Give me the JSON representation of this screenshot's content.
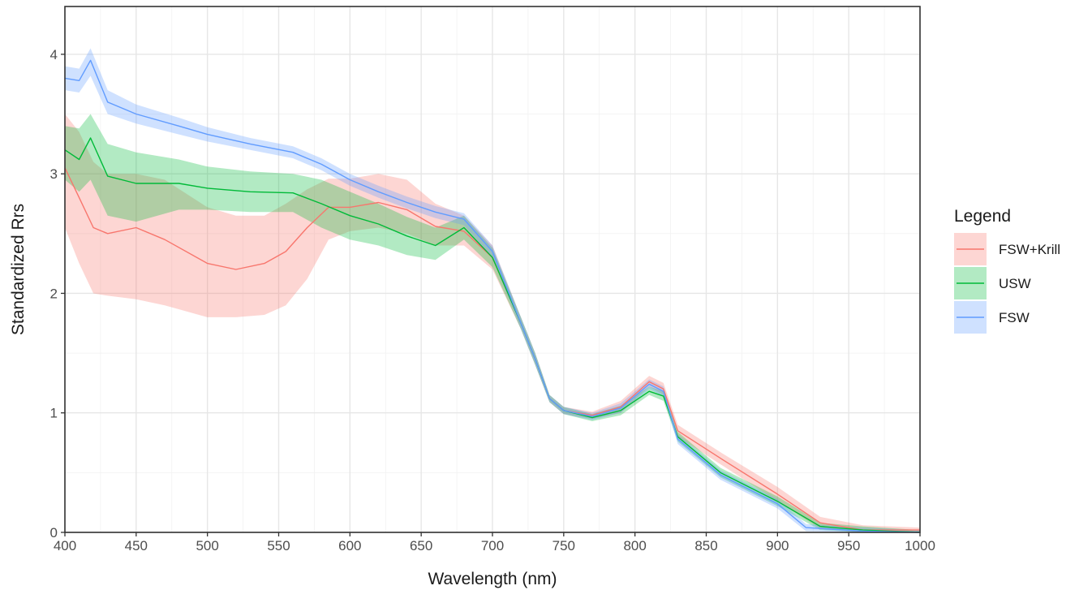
{
  "chart_data": {
    "type": "line",
    "title": "",
    "xlabel": "Wavelength (nm)",
    "ylabel": "Standardized Rrs",
    "xlim": [
      400,
      1000
    ],
    "ylim": [
      0,
      4.4
    ],
    "x_ticks": [
      "400",
      "450",
      "500",
      "550",
      "600",
      "650",
      "700",
      "750",
      "800",
      "850",
      "900",
      "950",
      "1000"
    ],
    "y_ticks": [
      "0",
      "1",
      "2",
      "3",
      "4"
    ],
    "grid": true,
    "legend": {
      "title": "Legend",
      "position": "right"
    },
    "series": [
      {
        "name": "FSW+Krill",
        "color": "#F8766D",
        "band_color": "#F8766D",
        "points": [
          [
            400,
            3.05,
            2.55,
            3.5
          ],
          [
            410,
            2.8,
            2.25,
            3.35
          ],
          [
            420,
            2.55,
            2.0,
            3.1
          ],
          [
            430,
            2.5,
            1.98,
            3.0
          ],
          [
            450,
            2.55,
            1.95,
            3.0
          ],
          [
            470,
            2.45,
            1.9,
            2.95
          ],
          [
            500,
            2.25,
            1.8,
            2.72
          ],
          [
            520,
            2.2,
            1.8,
            2.65
          ],
          [
            540,
            2.25,
            1.82,
            2.65
          ],
          [
            555,
            2.35,
            1.9,
            2.75
          ],
          [
            570,
            2.55,
            2.12,
            2.87
          ],
          [
            585,
            2.72,
            2.45,
            2.96
          ],
          [
            600,
            2.72,
            2.52,
            2.96
          ],
          [
            620,
            2.76,
            2.55,
            3.0
          ],
          [
            640,
            2.7,
            2.5,
            2.95
          ],
          [
            660,
            2.56,
            2.4,
            2.75
          ],
          [
            680,
            2.52,
            2.4,
            2.65
          ],
          [
            700,
            2.3,
            2.2,
            2.4
          ],
          [
            720,
            1.75,
            1.7,
            1.8
          ],
          [
            730,
            1.45,
            1.4,
            1.5
          ],
          [
            740,
            1.12,
            1.09,
            1.15
          ],
          [
            750,
            1.02,
            0.99,
            1.05
          ],
          [
            770,
            0.98,
            0.95,
            1.01
          ],
          [
            790,
            1.05,
            1.0,
            1.1
          ],
          [
            810,
            1.26,
            1.22,
            1.31
          ],
          [
            820,
            1.2,
            1.15,
            1.25
          ],
          [
            830,
            0.85,
            0.8,
            0.9
          ],
          [
            860,
            0.62,
            0.57,
            0.67
          ],
          [
            900,
            0.32,
            0.26,
            0.38
          ],
          [
            930,
            0.08,
            0.03,
            0.13
          ],
          [
            960,
            0.02,
            0.0,
            0.06
          ],
          [
            1000,
            0.02,
            0.0,
            0.04
          ]
        ]
      },
      {
        "name": "USW",
        "color": "#00BA38",
        "band_color": "#00BA38",
        "points": [
          [
            400,
            3.2,
            2.95,
            3.4
          ],
          [
            410,
            3.12,
            2.85,
            3.38
          ],
          [
            418,
            3.3,
            2.95,
            3.5
          ],
          [
            430,
            2.98,
            2.65,
            3.25
          ],
          [
            450,
            2.92,
            2.6,
            3.18
          ],
          [
            480,
            2.92,
            2.7,
            3.12
          ],
          [
            500,
            2.88,
            2.7,
            3.06
          ],
          [
            530,
            2.85,
            2.68,
            3.02
          ],
          [
            560,
            2.84,
            2.68,
            3.0
          ],
          [
            580,
            2.75,
            2.55,
            2.95
          ],
          [
            600,
            2.65,
            2.45,
            2.85
          ],
          [
            620,
            2.58,
            2.4,
            2.75
          ],
          [
            640,
            2.48,
            2.32,
            2.64
          ],
          [
            660,
            2.4,
            2.28,
            2.55
          ],
          [
            680,
            2.55,
            2.45,
            2.65
          ],
          [
            700,
            2.3,
            2.22,
            2.38
          ],
          [
            720,
            1.75,
            1.7,
            1.8
          ],
          [
            730,
            1.45,
            1.4,
            1.5
          ],
          [
            740,
            1.12,
            1.09,
            1.15
          ],
          [
            750,
            1.02,
            0.99,
            1.05
          ],
          [
            770,
            0.96,
            0.93,
            0.99
          ],
          [
            790,
            1.02,
            0.98,
            1.06
          ],
          [
            810,
            1.18,
            1.15,
            1.22
          ],
          [
            820,
            1.14,
            1.1,
            1.18
          ],
          [
            830,
            0.8,
            0.76,
            0.84
          ],
          [
            860,
            0.5,
            0.46,
            0.54
          ],
          [
            900,
            0.26,
            0.22,
            0.3
          ],
          [
            930,
            0.05,
            0.02,
            0.08
          ],
          [
            960,
            0.02,
            0.0,
            0.05
          ],
          [
            1000,
            0.0,
            0.0,
            0.02
          ]
        ]
      },
      {
        "name": "FSW",
        "color": "#619CFF",
        "band_color": "#619CFF",
        "points": [
          [
            400,
            3.8,
            3.7,
            3.9
          ],
          [
            410,
            3.78,
            3.68,
            3.88
          ],
          [
            418,
            3.95,
            3.82,
            4.05
          ],
          [
            430,
            3.6,
            3.5,
            3.7
          ],
          [
            450,
            3.5,
            3.42,
            3.58
          ],
          [
            480,
            3.4,
            3.33,
            3.47
          ],
          [
            500,
            3.33,
            3.27,
            3.39
          ],
          [
            530,
            3.25,
            3.2,
            3.3
          ],
          [
            560,
            3.18,
            3.13,
            3.23
          ],
          [
            580,
            3.08,
            3.03,
            3.13
          ],
          [
            600,
            2.95,
            2.9,
            3.0
          ],
          [
            620,
            2.85,
            2.8,
            2.9
          ],
          [
            640,
            2.76,
            2.71,
            2.81
          ],
          [
            660,
            2.68,
            2.63,
            2.73
          ],
          [
            680,
            2.62,
            2.57,
            2.67
          ],
          [
            700,
            2.35,
            2.3,
            2.4
          ],
          [
            720,
            1.75,
            1.7,
            1.8
          ],
          [
            730,
            1.45,
            1.4,
            1.5
          ],
          [
            740,
            1.12,
            1.09,
            1.15
          ],
          [
            750,
            1.02,
            0.99,
            1.05
          ],
          [
            770,
            0.97,
            0.94,
            1.0
          ],
          [
            790,
            1.04,
            1.0,
            1.08
          ],
          [
            810,
            1.24,
            1.2,
            1.28
          ],
          [
            820,
            1.18,
            1.14,
            1.22
          ],
          [
            830,
            0.78,
            0.74,
            0.82
          ],
          [
            860,
            0.48,
            0.44,
            0.52
          ],
          [
            900,
            0.24,
            0.2,
            0.28
          ],
          [
            920,
            0.04,
            0.01,
            0.07
          ],
          [
            960,
            0.01,
            0.0,
            0.04
          ],
          [
            1000,
            0.0,
            0.0,
            0.02
          ]
        ]
      }
    ]
  }
}
